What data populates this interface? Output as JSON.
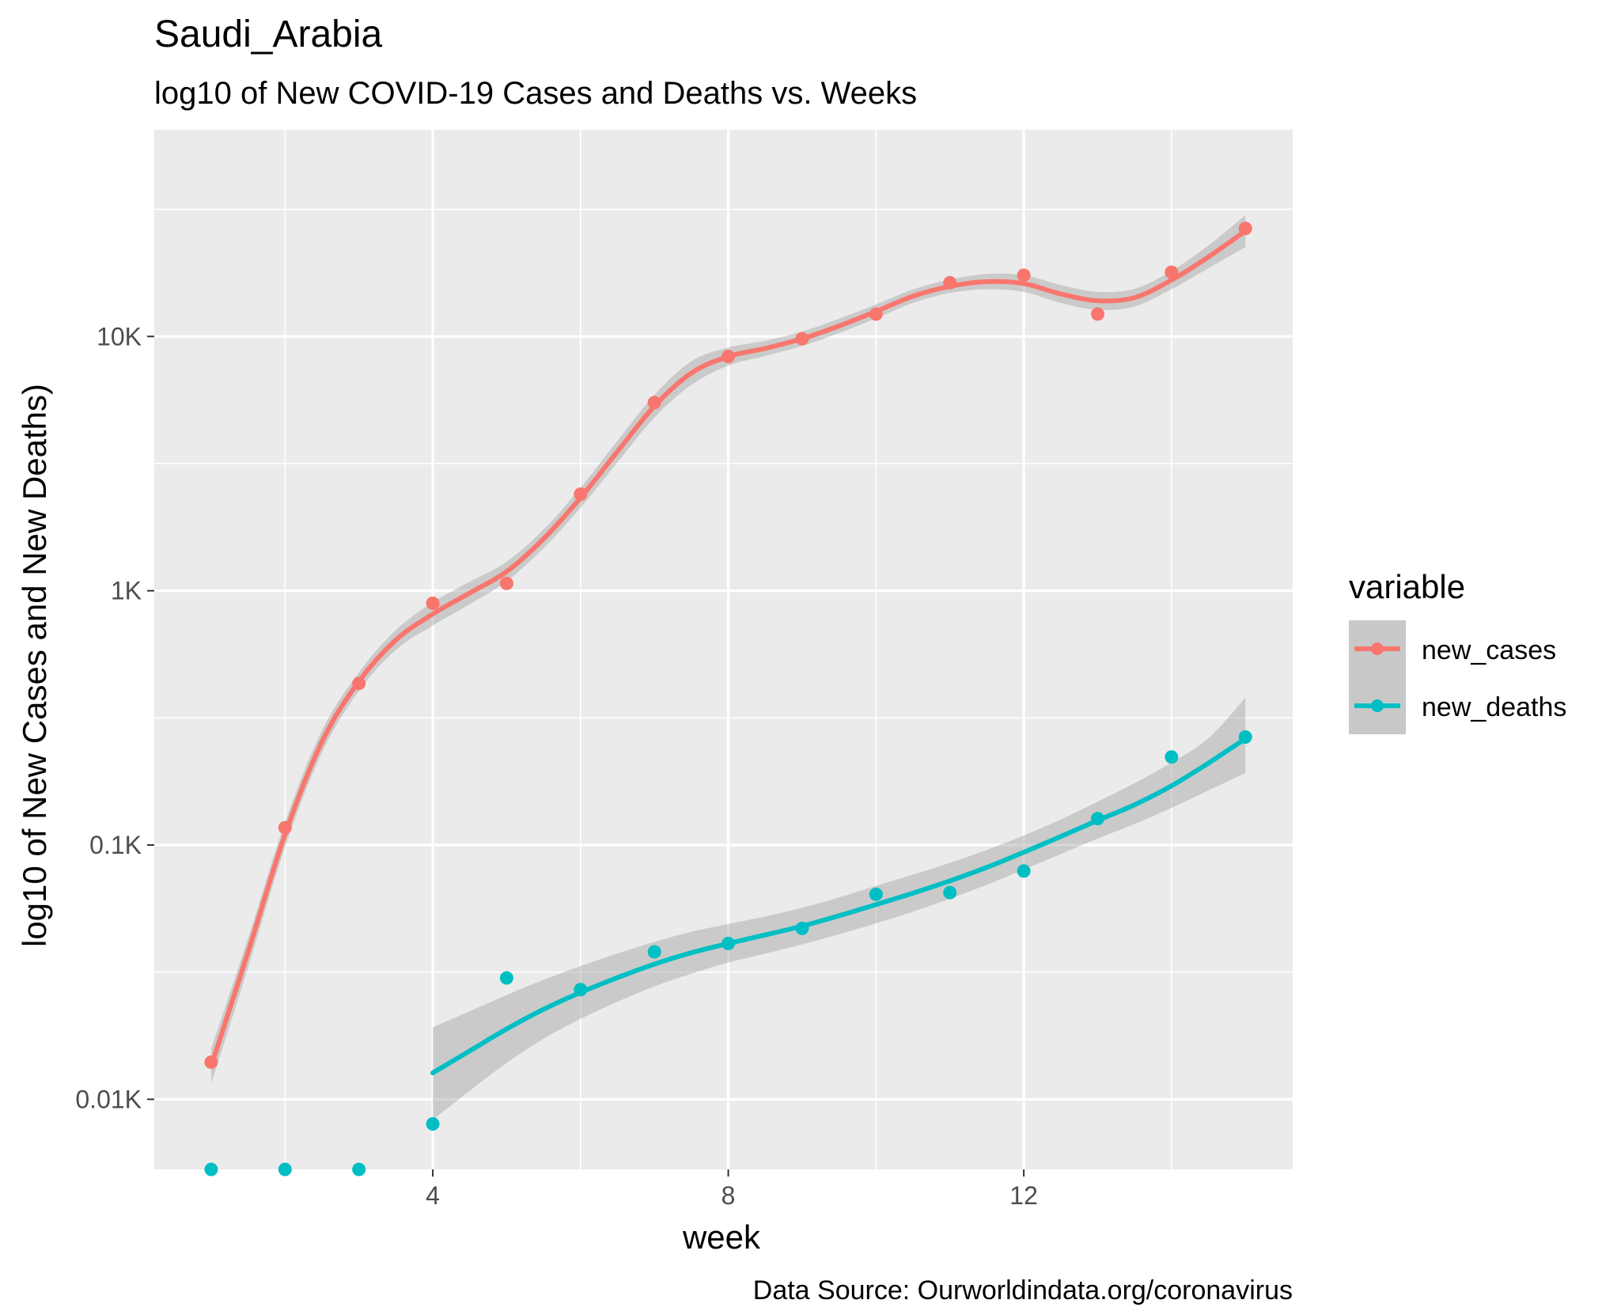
{
  "chart_data": {
    "type": "scatter",
    "title": "Saudi_Arabia",
    "subtitle": "log10 of New COVID-19 Cases and Deaths vs. Weeks",
    "xlabel": "week",
    "ylabel": "log10 of New Cases and New Deaths)",
    "caption": "Data Source: Ourworldindata.org/coronavirus",
    "y_scale": "log10",
    "xlim": [
      0.23,
      15.64
    ],
    "ylim": [
      5.3,
      65000
    ],
    "x_ticks": [
      4,
      8,
      12
    ],
    "x_tick_labels": [
      "4",
      "8",
      "12"
    ],
    "y_ticks": [
      10,
      100,
      1000,
      10000
    ],
    "y_tick_labels": [
      "0.01K",
      "0.1K",
      "1K",
      "10K"
    ],
    "grid": true,
    "legend": {
      "title": "variable",
      "position": "right",
      "entries": [
        "new_cases",
        "new_deaths"
      ]
    },
    "series": [
      {
        "name": "new_cases",
        "color": "#F8766D",
        "points": {
          "x": [
            1,
            2,
            3,
            4,
            5,
            6,
            7,
            8,
            9,
            10,
            11,
            12,
            13,
            14,
            15
          ],
          "y": [
            14,
            117,
            432,
            893,
            1069,
            2398,
            5496,
            8343,
            9800,
            12240,
            16273,
            17404,
            12250,
            17892,
            26600
          ]
        },
        "smooth": {
          "x": [
            1,
            1.5,
            2,
            2.5,
            3,
            3.5,
            4,
            4.5,
            5,
            5.5,
            6,
            6.5,
            7,
            7.5,
            8,
            8.5,
            9,
            9.5,
            10,
            10.5,
            11,
            11.5,
            12,
            12.5,
            13,
            13.5,
            14,
            14.5,
            15
          ],
          "y": [
            13.5,
            38,
            110,
            255,
            440,
            640,
            810,
            980,
            1190,
            1600,
            2320,
            3530,
            5320,
            7180,
            8340,
            8980,
            9800,
            11000,
            12550,
            14400,
            15750,
            16430,
            16150,
            14700,
            13820,
            14220,
            16670,
            20550,
            26000
          ],
          "band_lo": [
            11.5,
            33,
            98,
            231,
            404,
            585,
            730,
            885,
            1090,
            1470,
            2120,
            3200,
            4800,
            6450,
            7680,
            8380,
            9180,
            10310,
            11780,
            13550,
            14820,
            15340,
            14970,
            13550,
            12730,
            13130,
            15340,
            18550,
            22500
          ],
          "band_hi": [
            15.8,
            43,
            123,
            282,
            478,
            700,
            900,
            1085,
            1300,
            1740,
            2540,
            3890,
            5890,
            7990,
            9050,
            9620,
            10460,
            11740,
            13360,
            15300,
            16740,
            17610,
            17420,
            15950,
            14990,
            15400,
            18110,
            22790,
            30000
          ]
        }
      },
      {
        "name": "new_deaths",
        "color": "#00BFC4",
        "points": {
          "x": [
            1,
            2,
            3,
            4,
            5,
            6,
            7,
            8,
            9,
            10,
            11,
            12,
            13,
            14,
            15
          ],
          "y": [
            5.3,
            5.3,
            5.3,
            8,
            30,
            27,
            38,
            41,
            47,
            64,
            65,
            79,
            127,
            222,
            266
          ]
        },
        "smooth": {
          "x": [
            4,
            4.5,
            5,
            5.5,
            6,
            6.5,
            7,
            7.5,
            8,
            8.5,
            9,
            9.5,
            10,
            10.5,
            11,
            11.5,
            12,
            12.5,
            13,
            13.5,
            14,
            14.5,
            15
          ],
          "y": [
            12.7,
            15.5,
            18.9,
            22.6,
            26.3,
            30.1,
            34,
            37.7,
            41,
            44.3,
            48,
            52.7,
            58.3,
            64.7,
            72.3,
            81.7,
            93.7,
            108,
            125,
            144,
            171,
            210,
            262
          ],
          "band_lo": [
            8.3,
            10.8,
            13.9,
            17.3,
            20.7,
            24.2,
            27.8,
            31.2,
            34.5,
            37.4,
            40.7,
            44.6,
            49.2,
            54.7,
            61.5,
            69.8,
            80.1,
            92.1,
            106,
            121,
            140,
            164,
            192
          ],
          "band_hi": [
            19.2,
            22.2,
            25.7,
            29.5,
            33.4,
            37.4,
            41.6,
            45.6,
            48.9,
            52.4,
            56.6,
            62.2,
            69.1,
            76.5,
            85.1,
            95.7,
            109,
            126,
            148,
            175,
            211,
            263,
            379
          ]
        }
      }
    ]
  }
}
